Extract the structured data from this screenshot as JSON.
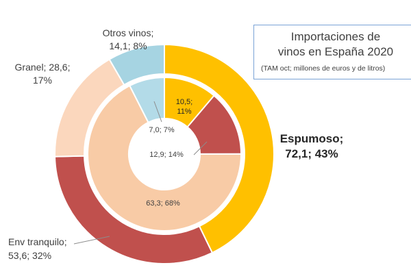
{
  "chart_data": {
    "type": "pie",
    "variant": "double-doughnut",
    "title": {
      "line1": "Importaciones de",
      "line2": "vinos en España 2020",
      "line3": "(TAM oct; millones de euros y de litros)"
    },
    "categories": [
      "Espumoso",
      "Env tranquilo",
      "Granel",
      "Otros vinos"
    ],
    "colors": {
      "outer": [
        "#ffc000",
        "#c0504d",
        "#fbd7bd",
        "#a6d4e2"
      ],
      "inner": [
        "#ffc000",
        "#c0504d",
        "#f8cba6",
        "#b3dbe8"
      ]
    },
    "series": [
      {
        "ring": "outer",
        "values": [
          72.1,
          53.6,
          28.6,
          14.1
        ],
        "labels": [
          {
            "lines": [
              "Espumoso;",
              "72,1; 43%"
            ]
          },
          {
            "lines": [
              "Env tranquilo;",
              "53,6; 32%"
            ]
          },
          {
            "lines": [
              "Granel; 28,6;",
              "17%"
            ]
          },
          {
            "lines": [
              "Otros vinos;",
              "14,1; 8%"
            ]
          }
        ]
      },
      {
        "ring": "inner",
        "values": [
          10.5,
          12.9,
          63.3,
          7.0
        ],
        "labels": [
          {
            "lines": [
              "10,5;",
              "11%"
            ]
          },
          {
            "lines": [
              "12,9; 14%"
            ]
          },
          {
            "lines": [
              "63,3; 68%"
            ]
          },
          {
            "lines": [
              "7,0; 7%"
            ]
          }
        ]
      }
    ]
  }
}
